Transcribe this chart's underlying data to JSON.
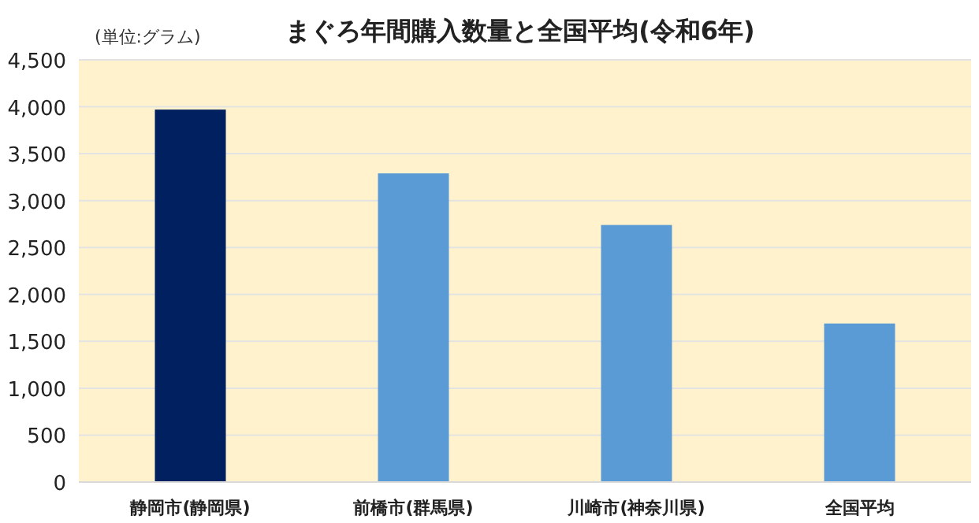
{
  "chart_data": {
    "type": "bar",
    "title": "まぐろ年間購入数量と全国平均(令和6年)",
    "annotations": [
      "(単位:グラム)"
    ],
    "categories": [
      "静岡市(静岡県)",
      "前橋市(群馬県)",
      "川崎市(神奈川県)",
      "全国平均"
    ],
    "values": [
      3970,
      3290,
      2740,
      1690
    ],
    "colors": [
      "#002060",
      "#5b9bd5",
      "#5b9bd5",
      "#5b9bd5"
    ],
    "ylim": [
      0,
      4500
    ],
    "yticks": [
      {
        "value": 0,
        "label": "0"
      },
      {
        "value": 500,
        "label": "500"
      },
      {
        "value": 1000,
        "label": "1,000"
      },
      {
        "value": 1500,
        "label": "1,500"
      },
      {
        "value": 2000,
        "label": "2,000"
      },
      {
        "value": 2500,
        "label": "2,500"
      },
      {
        "value": 3000,
        "label": "3,000"
      },
      {
        "value": 3500,
        "label": "3,500"
      },
      {
        "value": 4000,
        "label": "4,000"
      },
      {
        "value": 4500,
        "label": "4,500"
      }
    ],
    "grid": "y"
  }
}
